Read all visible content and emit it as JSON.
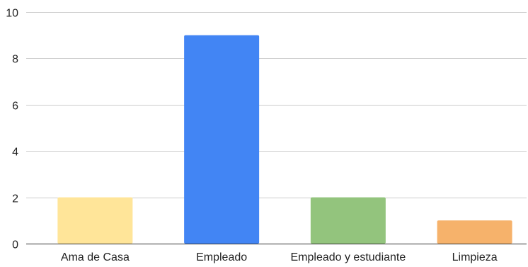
{
  "chart_data": {
    "type": "bar",
    "categories": [
      "Ama de Casa",
      "Empleado",
      "Empleado y estudiante",
      "Limpieza"
    ],
    "values": [
      2,
      9,
      2,
      1
    ],
    "colors": [
      "#FFE599",
      "#4285F4",
      "#93C47D",
      "#F6B26B"
    ],
    "ylim": [
      0,
      10
    ],
    "yticks": [
      0,
      2,
      4,
      6,
      8,
      10
    ],
    "grid": true,
    "legend": "none",
    "title": "",
    "xlabel": "",
    "ylabel": ""
  }
}
